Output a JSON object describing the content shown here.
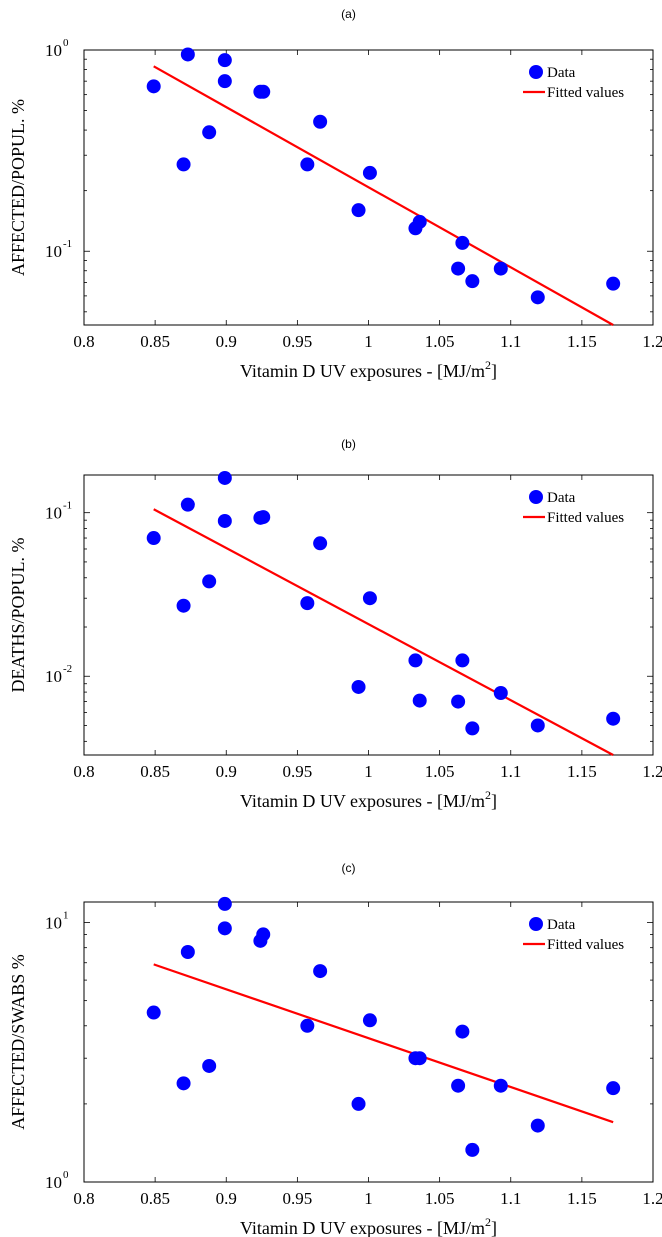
{
  "chart_data": [
    {
      "type": "scatter",
      "panel_label": "(a)",
      "xlabel": "Vitamin D UV exposures - [MJ/m",
      "xlabel_sup": "2",
      "xlabel_end": "]",
      "ylabel": "AFFECTED/POPUL. %",
      "xlim": [
        0.8,
        1.2
      ],
      "ylim": [
        0.043,
        1.0
      ],
      "y_scale": "log",
      "x_ticks": [
        "0.8",
        "0.85",
        "0.9",
        "0.95",
        "1",
        "1.05",
        "1.1",
        "1.15",
        "1.2"
      ],
      "y_ticks": [
        {
          "value": 1.0,
          "base": "10",
          "exp": "0"
        },
        {
          "value": 0.1,
          "base": "10",
          "exp": "-1"
        }
      ],
      "legend": {
        "position": "top-right",
        "entries": [
          "Data",
          "Fitted values"
        ]
      },
      "colors": {
        "points": "#0000ff",
        "fit": "#ff0000"
      },
      "series": [
        {
          "name": "Data",
          "x": [
            0.849,
            0.87,
            0.873,
            0.888,
            0.899,
            0.899,
            0.924,
            0.926,
            0.957,
            0.966,
            0.993,
            1.001,
            1.033,
            1.036,
            1.063,
            1.066,
            1.073,
            1.093,
            1.119,
            1.172
          ],
          "y": [
            0.66,
            0.27,
            0.95,
            0.39,
            0.7,
            0.89,
            0.62,
            0.62,
            0.27,
            0.44,
            0.16,
            0.245,
            0.13,
            0.14,
            0.082,
            0.11,
            0.071,
            0.082,
            0.059,
            0.069
          ]
        },
        {
          "name": "Fitted values",
          "x": [
            0.849,
            1.172
          ],
          "y": [
            0.83,
            0.043
          ]
        }
      ]
    },
    {
      "type": "scatter",
      "panel_label": "(b)",
      "xlabel": "Vitamin D UV exposures - [MJ/m",
      "xlabel_sup": "2",
      "xlabel_end": "]",
      "ylabel": "DEATHS/POPUL. %",
      "xlim": [
        0.8,
        1.2
      ],
      "ylim": [
        0.0033,
        0.17
      ],
      "y_scale": "log",
      "x_ticks": [
        "0.8",
        "0.85",
        "0.9",
        "0.95",
        "1",
        "1.05",
        "1.1",
        "1.15",
        "1.2"
      ],
      "y_ticks": [
        {
          "value": 0.1,
          "base": "10",
          "exp": "-1"
        },
        {
          "value": 0.01,
          "base": "10",
          "exp": "-2"
        }
      ],
      "legend": {
        "position": "top-right",
        "entries": [
          "Data",
          "Fitted values"
        ]
      },
      "colors": {
        "points": "#0000ff",
        "fit": "#ff0000"
      },
      "series": [
        {
          "name": "Data",
          "x": [
            0.849,
            0.87,
            0.873,
            0.888,
            0.899,
            0.899,
            0.924,
            0.926,
            0.957,
            0.966,
            0.993,
            1.001,
            1.033,
            1.036,
            1.063,
            1.066,
            1.073,
            1.093,
            1.119,
            1.172
          ],
          "y": [
            0.07,
            0.027,
            0.112,
            0.038,
            0.089,
            0.163,
            0.093,
            0.094,
            0.028,
            0.065,
            0.0086,
            0.03,
            0.0125,
            0.0071,
            0.007,
            0.0125,
            0.0048,
            0.0079,
            0.005,
            0.0055
          ]
        },
        {
          "name": "Fitted values",
          "x": [
            0.849,
            1.172
          ],
          "y": [
            0.105,
            0.0033
          ]
        }
      ]
    },
    {
      "type": "scatter",
      "panel_label": "(c)",
      "xlabel": "Vitamin D UV exposures - [MJ/m",
      "xlabel_sup": "2",
      "xlabel_end": "]",
      "ylabel": "AFFECTED/SWABS %",
      "xlim": [
        0.8,
        1.2
      ],
      "ylim": [
        1.0,
        12.0
      ],
      "y_scale": "log",
      "x_ticks": [
        "0.8",
        "0.85",
        "0.9",
        "0.95",
        "1",
        "1.05",
        "1.1",
        "1.15",
        "1.2"
      ],
      "y_ticks": [
        {
          "value": 10,
          "base": "10",
          "exp": "1"
        },
        {
          "value": 1,
          "base": "10",
          "exp": "0"
        }
      ],
      "legend": {
        "position": "top-right",
        "entries": [
          "Data",
          "Fitted values"
        ]
      },
      "colors": {
        "points": "#0000ff",
        "fit": "#ff0000"
      },
      "series": [
        {
          "name": "Data",
          "x": [
            0.849,
            0.87,
            0.873,
            0.888,
            0.899,
            0.899,
            0.924,
            0.926,
            0.957,
            0.966,
            0.993,
            1.001,
            1.033,
            1.036,
            1.063,
            1.066,
            1.073,
            1.093,
            1.119,
            1.172
          ],
          "y": [
            4.5,
            2.4,
            7.7,
            2.8,
            9.5,
            11.8,
            8.5,
            9.0,
            4.0,
            6.5,
            2.0,
            4.2,
            3.0,
            3.0,
            2.35,
            3.8,
            1.33,
            2.35,
            1.65,
            2.3
          ]
        },
        {
          "name": "Fitted values",
          "x": [
            0.849,
            1.172
          ],
          "y": [
            6.9,
            1.7
          ]
        }
      ]
    }
  ]
}
